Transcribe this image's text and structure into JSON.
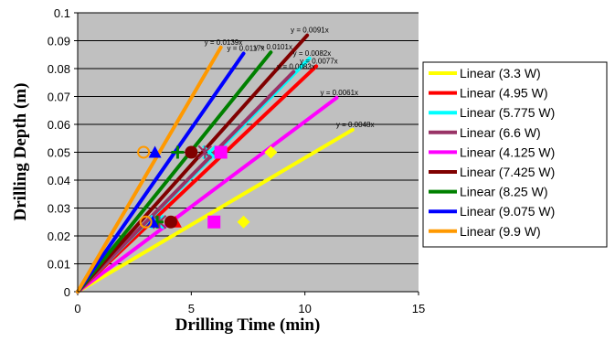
{
  "chart_data": {
    "type": "scatter",
    "xlabel": "Drilling Time (min)",
    "ylabel": "Drilling Depth (m)",
    "xlim": [
      0,
      15
    ],
    "ylim": [
      0,
      0.1
    ],
    "x_ticks": [
      "0",
      "5",
      "10",
      "15"
    ],
    "y_ticks": [
      "0",
      "0.01",
      "0.02",
      "0.03",
      "0.04",
      "0.05",
      "0.06",
      "0.07",
      "0.08",
      "0.09",
      "0.1"
    ],
    "grid": "horizontal",
    "plot_background": "#c0c0c0",
    "legend_position": "right",
    "series": [
      {
        "name": "Linear (3.3 W)",
        "color": "#ffff00",
        "slope": 0.0048,
        "equation": "y = 0.0048x",
        "x_end": 12.1,
        "marker": "diamond",
        "points": [
          [
            7.3,
            0.025
          ],
          [
            8.5,
            0.05
          ]
        ]
      },
      {
        "name": "Linear (4.95 W)",
        "color": "#ff0000",
        "slope": 0.0077,
        "equation": "y = 0.0077x",
        "x_end": 10.5,
        "marker": "triangle",
        "points": [
          [
            4.3,
            0.025
          ],
          [
            6.3,
            0.05
          ]
        ]
      },
      {
        "name": "Linear (5.775 W)",
        "color": "#00ffff",
        "slope": 0.0082,
        "equation": "y = 0.0082x",
        "x_end": 10.2,
        "marker": "x",
        "points": [
          [
            3.5,
            0.025
          ],
          [
            5.8,
            0.05
          ]
        ]
      },
      {
        "name": "Linear (6.6 W)",
        "color": "#993366",
        "slope": 0.0083,
        "equation": "y = 0.0083x",
        "x_end": 9.5,
        "marker": "star",
        "points": [
          [
            3.6,
            0.025
          ],
          [
            5.6,
            0.05
          ]
        ]
      },
      {
        "name": "Linear (4.125 W)",
        "color": "#ff00ff",
        "slope": 0.0061,
        "equation": "y = 0.0061x",
        "x_end": 11.4,
        "marker": "square",
        "points": [
          [
            6.0,
            0.025
          ],
          [
            6.3,
            0.05
          ]
        ]
      },
      {
        "name": "Linear (7.425 W)",
        "color": "#800000",
        "slope": 0.0091,
        "equation": "y = 0.0091x",
        "x_end": 10.1,
        "marker": "circle",
        "points": [
          [
            4.1,
            0.025
          ],
          [
            5.0,
            0.05
          ]
        ]
      },
      {
        "name": "Linear (8.25 W)",
        "color": "#008000",
        "slope": 0.0101,
        "equation": "y = 0.0101x",
        "x_end": 8.5,
        "marker": "plus",
        "points": [
          [
            3.5,
            0.025
          ],
          [
            4.4,
            0.05
          ]
        ]
      },
      {
        "name": "Linear (9.075 W)",
        "color": "#0000ff",
        "slope": 0.0117,
        "equation": "y = 0.0117x",
        "x_end": 7.3,
        "marker": "triangle",
        "points": [
          [
            3.3,
            0.025
          ],
          [
            3.4,
            0.05
          ]
        ]
      },
      {
        "name": "Linear (9.9 W)",
        "color": "#ff9900",
        "slope": 0.0139,
        "equation": "y = 0.0139x",
        "x_end": 6.3,
        "marker": "circle-open",
        "points": [
          [
            3.0,
            0.025
          ],
          [
            2.9,
            0.05
          ]
        ]
      }
    ],
    "equation_order": [
      "Linear (9.9 W)",
      "Linear (9.075 W)",
      "Linear (8.25 W)",
      "Linear (7.425 W)",
      "Linear (6.6 W)",
      "Linear (5.775 W)",
      "Linear (4.95 W)",
      "Linear (4.125 W)",
      "Linear (3.3 W)"
    ]
  }
}
